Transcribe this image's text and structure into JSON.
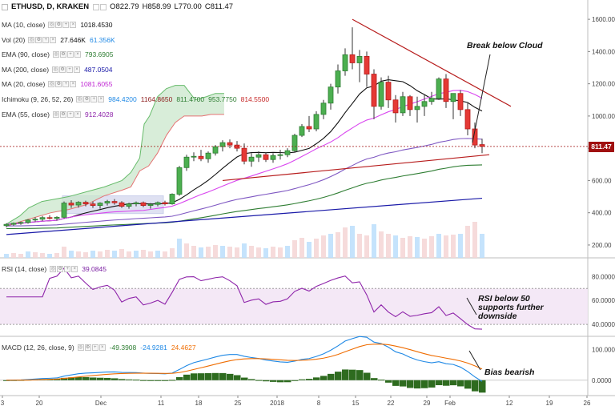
{
  "header": {
    "symbol": "ETHUSD, D, KRAKEN",
    "open": "O822.79",
    "high": "H858.99",
    "low": "L770.00",
    "close": "C811.47"
  },
  "indicators": [
    {
      "label": "MA (10, close)",
      "values": [
        "1018.4530"
      ],
      "colors": [
        "#111111"
      ]
    },
    {
      "label": "Vol (20)",
      "values": [
        "27.646K",
        "61.356K"
      ],
      "colors": [
        "#111111",
        "#1e88e5"
      ]
    },
    {
      "label": "EMA (90, close)",
      "values": [
        "793.6905"
      ],
      "colors": [
        "#2e7d32"
      ]
    },
    {
      "label": "MA (200, close)",
      "values": [
        "487.0504"
      ],
      "colors": [
        "#1a1aa8"
      ]
    },
    {
      "label": "MA (20, close)",
      "values": [
        "1081.6055"
      ],
      "colors": [
        "#c026d3"
      ]
    },
    {
      "label": "Ichimoku (9, 26, 52, 26)",
      "values": [
        "984.4200",
        "1164.8650",
        "811.4700",
        "953.7750",
        "814.5500"
      ],
      "colors": [
        "#1e88e5",
        "#8b1a1a",
        "#2e7d32",
        "#2e7d32",
        "#c62828"
      ]
    },
    {
      "label": "EMA (55, close)",
      "values": [
        "912.4028"
      ],
      "colors": [
        "#8e24aa"
      ]
    }
  ],
  "price_tag": "811.47",
  "rsi": {
    "label": "RSI (14, close)",
    "value": "39.0845"
  },
  "macd": {
    "label": "MACD (12, 26, close, 9)",
    "values": [
      "-49.3908",
      "-24.9281",
      "24.4627"
    ]
  },
  "annotations": {
    "cloud": "Break below Cloud",
    "rsi": [
      "RSI below 50",
      "supports further",
      "downside"
    ],
    "bias": "Bias bearish"
  },
  "chart_data": [
    {
      "type": "candlestick",
      "panel": "price",
      "ylim": [
        160,
        1680
      ],
      "y_ticks": [
        "1600.00",
        "1400.00",
        "1200.00",
        "1000.00",
        "800.00",
        "600.00",
        "400.00",
        "200.00"
      ],
      "x_ticks": [
        "3",
        "20",
        "Dec",
        "11",
        "18",
        "25",
        "2018",
        "8",
        "15",
        "22",
        "29",
        "Feb",
        "12",
        "19",
        "26"
      ],
      "ohlc": [
        [
          320,
          335,
          310,
          328
        ],
        [
          328,
          340,
          320,
          335
        ],
        [
          335,
          345,
          325,
          340
        ],
        [
          340,
          360,
          332,
          355
        ],
        [
          355,
          372,
          345,
          360
        ],
        [
          360,
          380,
          350,
          370
        ],
        [
          370,
          385,
          358,
          365
        ],
        [
          365,
          378,
          352,
          372
        ],
        [
          372,
          470,
          365,
          460
        ],
        [
          460,
          478,
          430,
          448
        ],
        [
          448,
          472,
          432,
          465
        ],
        [
          465,
          475,
          440,
          455
        ],
        [
          455,
          470,
          430,
          445
        ],
        [
          445,
          465,
          425,
          460
        ],
        [
          460,
          480,
          445,
          470
        ],
        [
          470,
          485,
          450,
          462
        ],
        [
          462,
          472,
          430,
          440
        ],
        [
          440,
          462,
          425,
          455
        ],
        [
          455,
          470,
          440,
          462
        ],
        [
          462,
          470,
          435,
          445
        ],
        [
          445,
          460,
          425,
          452
        ],
        [
          452,
          470,
          440,
          463
        ],
        [
          463,
          475,
          445,
          455
        ],
        [
          455,
          520,
          450,
          515
        ],
        [
          515,
          690,
          505,
          680
        ],
        [
          680,
          760,
          660,
          745
        ],
        [
          745,
          775,
          720,
          750
        ],
        [
          750,
          790,
          720,
          735
        ],
        [
          735,
          780,
          710,
          770
        ],
        [
          770,
          820,
          755,
          810
        ],
        [
          810,
          850,
          780,
          835
        ],
        [
          835,
          855,
          800,
          820
        ],
        [
          820,
          845,
          780,
          800
        ],
        [
          800,
          830,
          700,
          720
        ],
        [
          720,
          770,
          685,
          745
        ],
        [
          745,
          780,
          715,
          760
        ],
        [
          760,
          775,
          715,
          730
        ],
        [
          730,
          770,
          710,
          755
        ],
        [
          755,
          790,
          730,
          760
        ],
        [
          760,
          800,
          745,
          785
        ],
        [
          785,
          890,
          775,
          880
        ],
        [
          880,
          950,
          870,
          935
        ],
        [
          935,
          1000,
          900,
          920
        ],
        [
          920,
          1030,
          905,
          1010
        ],
        [
          1010,
          1100,
          980,
          1080
        ],
        [
          1080,
          1200,
          1040,
          1180
        ],
        [
          1180,
          1320,
          1140,
          1280
        ],
        [
          1280,
          1420,
          1250,
          1380
        ],
        [
          1380,
          1550,
          1290,
          1330
        ],
        [
          1330,
          1410,
          1210,
          1370
        ],
        [
          1370,
          1400,
          1180,
          1260
        ],
        [
          1260,
          1290,
          980,
          1060
        ],
        [
          1060,
          1240,
          1040,
          1210
        ],
        [
          1210,
          1250,
          1050,
          1100
        ],
        [
          1100,
          1130,
          960,
          1020
        ],
        [
          1020,
          1150,
          1000,
          1120
        ],
        [
          1120,
          1130,
          1000,
          1040
        ],
        [
          1040,
          1120,
          960,
          1060
        ],
        [
          1060,
          1130,
          1000,
          1090
        ],
        [
          1090,
          1150,
          1070,
          1110
        ],
        [
          1110,
          1240,
          1100,
          1230
        ],
        [
          1230,
          1260,
          1050,
          1090
        ],
        [
          1090,
          1130,
          980,
          1140
        ],
        [
          1140,
          1160,
          1000,
          1040
        ],
        [
          1040,
          1080,
          880,
          920
        ],
        [
          920,
          960,
          800,
          820
        ],
        [
          822.79,
          858.99,
          770,
          811.47
        ]
      ],
      "x_start_day": 0
    },
    {
      "type": "line",
      "panel": "rsi",
      "ylim": [
        30,
        95
      ],
      "y_ticks": [
        "80.0000",
        "60.0000",
        "40.0000"
      ],
      "band": [
        40,
        70
      ]
    },
    {
      "type": "line",
      "panel": "macd",
      "ylim": [
        -50,
        140
      ],
      "y_ticks": [
        "100.0000",
        "0.0000"
      ]
    }
  ]
}
